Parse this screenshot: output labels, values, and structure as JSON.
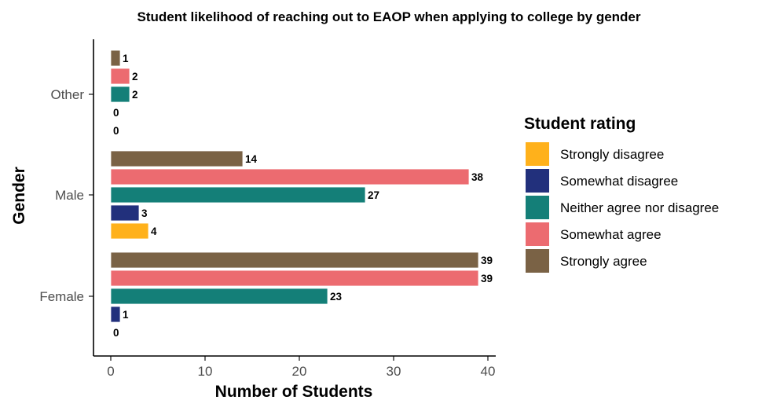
{
  "chart_data": {
    "type": "bar",
    "orientation": "horizontal",
    "title": "Student likelihood of reaching out to EAOP when applying to college by gender",
    "xlabel": "Number of Students",
    "ylabel": "Gender",
    "xlim": [
      0,
      40
    ],
    "x_ticks": [
      "0",
      "10",
      "20",
      "30",
      "40"
    ],
    "categories": [
      "Female",
      "Male",
      "Other"
    ],
    "series": [
      {
        "name": "Strongly disagree",
        "color": "#FFB11B",
        "values": [
          0,
          4,
          0
        ]
      },
      {
        "name": "Somewhat disagree",
        "color": "#22307C",
        "values": [
          1,
          3,
          0
        ]
      },
      {
        "name": "Neither agree nor disagree",
        "color": "#147F78",
        "values": [
          23,
          27,
          2
        ]
      },
      {
        "name": "Somewhat agree",
        "color": "#EC6B70",
        "values": [
          39,
          38,
          2
        ]
      },
      {
        "name": "Strongly agree",
        "color": "#7A6245",
        "values": [
          39,
          14,
          1
        ]
      }
    ],
    "data_labels": true,
    "legend": {
      "title": "Student rating",
      "position": "right"
    },
    "grid": false
  }
}
